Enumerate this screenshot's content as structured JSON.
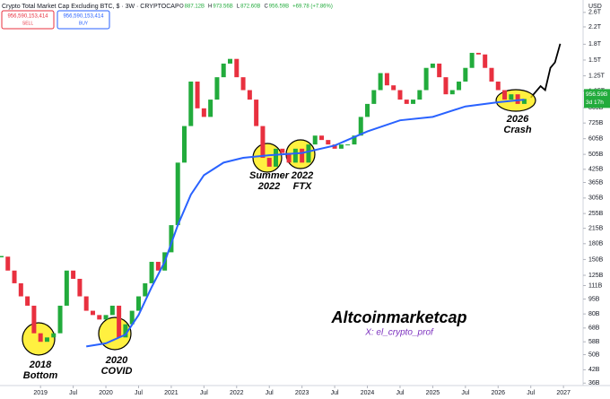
{
  "chart_data": {
    "type": "candlestick",
    "title": "Crypto Total Market Cap Excluding BTC, $ · 3W · CRYPTOCAP",
    "ohlc": [
      {
        "label": "O",
        "value": "887.12B"
      },
      {
        "label": "H",
        "value": "973.56B"
      },
      {
        "label": "L",
        "value": "872.60B"
      },
      {
        "label": "C",
        "value": "956.59B"
      },
      {
        "label": "",
        "value": "+69.78 (+7.86%)"
      }
    ],
    "trade_panel": {
      "sell_price": "956,590,153,414",
      "sell": "SELL",
      "buy_price": "956,590,153,414",
      "buy": "BUY"
    },
    "currency": "USD",
    "price_label": "956.59B",
    "countdown": "3d 17h",
    "log_scale": true,
    "grid": false,
    "up_color": "#22ab3c",
    "down_color": "#e8303f",
    "x": [
      2018.4,
      2018.5,
      2018.6,
      2018.7,
      2018.8,
      2018.9,
      2019.0,
      2019.1,
      2019.2,
      2019.3,
      2019.4,
      2019.5,
      2019.6,
      2019.7,
      2019.8,
      2019.9,
      2020.0,
      2020.1,
      2020.2,
      2020.3,
      2020.4,
      2020.5,
      2020.6,
      2020.7,
      2020.8,
      2020.9,
      2021.0,
      2021.1,
      2021.2,
      2021.3,
      2021.4,
      2021.5,
      2021.6,
      2021.7,
      2021.8,
      2021.9,
      2022.0,
      2022.1,
      2022.2,
      2022.3,
      2022.4,
      2022.5,
      2022.6,
      2022.7,
      2022.8,
      2022.9,
      2023.0,
      2023.1,
      2023.2,
      2023.3,
      2023.4,
      2023.5,
      2023.6,
      2023.7,
      2023.8,
      2023.9,
      2024.0,
      2024.1,
      2024.2,
      2024.3,
      2024.4,
      2024.5,
      2024.6,
      2024.7,
      2024.8,
      2024.9,
      2025.0,
      2025.1,
      2025.2,
      2025.3,
      2025.4,
      2025.5,
      2025.6,
      2025.7,
      2025.8,
      2025.9,
      2026.0,
      2026.1,
      2026.2,
      2026.3,
      2026.4
    ],
    "values": [
      155,
      132,
      114,
      98,
      88,
      64,
      58,
      61,
      64,
      88,
      132,
      120,
      98,
      83,
      79,
      75,
      79,
      88,
      61,
      71,
      83,
      98,
      114,
      146,
      132,
      163,
      223,
      459,
      700,
      1170,
      859,
      778,
      950,
      1230,
      1440,
      1520,
      1230,
      1060,
      950,
      700,
      485,
      438,
      539,
      513,
      459,
      539,
      459,
      566,
      627,
      596,
      566,
      539,
      566,
      566,
      627,
      778,
      904,
      1060,
      1290,
      1120,
      1060,
      950,
      904,
      950,
      1060,
      1370,
      1440,
      1230,
      1010,
      1060,
      1170,
      1370,
      1630,
      1600,
      1370,
      1170,
      1060,
      950,
      1010,
      904,
      957
    ],
    "ma": {
      "color": "#2962ff",
      "x": [
        2019.7,
        2020.0,
        2020.3,
        2020.5,
        2020.7,
        2020.9,
        2021.1,
        2021.3,
        2021.5,
        2021.8,
        2022.1,
        2022.5,
        2023.0,
        2023.5,
        2024.0,
        2024.5,
        2025.0,
        2025.5,
        2026.0,
        2026.4
      ],
      "values": [
        55,
        57,
        63,
        79,
        109,
        146,
        223,
        317,
        397,
        459,
        485,
        500,
        513,
        559,
        658,
        748,
        778,
        878,
        922,
        950
      ]
    },
    "projection": {
      "color": "#000000",
      "x": [
        2026.5,
        2026.65,
        2026.72,
        2026.8,
        2026.87,
        2026.95
      ],
      "values": [
        973,
        1110,
        1060,
        1370,
        1460,
        1810
      ]
    },
    "xlim": [
      2018.38,
      2027.3
    ],
    "ylim": [
      35,
      3000
    ],
    "xticks": [
      {
        "value": 2019,
        "label": "2019"
      },
      {
        "value": 2019.5,
        "label": "Jul"
      },
      {
        "value": 2020,
        "label": "2020"
      },
      {
        "value": 2020.5,
        "label": "Jul"
      },
      {
        "value": 2021,
        "label": "2021"
      },
      {
        "value": 2021.5,
        "label": "Jul"
      },
      {
        "value": 2022,
        "label": "2022"
      },
      {
        "value": 2022.5,
        "label": "Jul"
      },
      {
        "value": 2023,
        "label": "2023"
      },
      {
        "value": 2023.5,
        "label": "Jul"
      },
      {
        "value": 2024,
        "label": "2024"
      },
      {
        "value": 2024.5,
        "label": "Jul"
      },
      {
        "value": 2025,
        "label": "2025"
      },
      {
        "value": 2025.5,
        "label": "Jul"
      },
      {
        "value": 2026,
        "label": "2026"
      },
      {
        "value": 2026.5,
        "label": "Jul"
      },
      {
        "value": 2027,
        "label": "2027"
      }
    ],
    "yticks": [
      {
        "value": 2600,
        "label": "2.6T"
      },
      {
        "value": 2200,
        "label": "2.2T"
      },
      {
        "value": 1800,
        "label": "1.8T"
      },
      {
        "value": 1500,
        "label": "1.5T"
      },
      {
        "value": 1250,
        "label": "1.25T"
      },
      {
        "value": 1050,
        "label": "1.05T"
      },
      {
        "value": 865,
        "label": "865B"
      },
      {
        "value": 725,
        "label": "725B"
      },
      {
        "value": 605,
        "label": "605B"
      },
      {
        "value": 505,
        "label": "505B"
      },
      {
        "value": 425,
        "label": "425B"
      },
      {
        "value": 365,
        "label": "365B"
      },
      {
        "value": 305,
        "label": "305B"
      },
      {
        "value": 255,
        "label": "255B"
      },
      {
        "value": 215,
        "label": "215B"
      },
      {
        "value": 180,
        "label": "180B"
      },
      {
        "value": 150,
        "label": "150B"
      },
      {
        "value": 125,
        "label": "125B"
      },
      {
        "value": 111,
        "label": "111B"
      },
      {
        "value": 95,
        "label": "95B"
      },
      {
        "value": 80,
        "label": "80B"
      },
      {
        "value": 68,
        "label": "68B"
      },
      {
        "value": 58,
        "label": "58B"
      },
      {
        "value": 50,
        "label": "50B"
      },
      {
        "value": 42,
        "label": "42B"
      },
      {
        "value": 36,
        "label": "36B"
      }
    ],
    "annotations": [
      {
        "lines": [
          "2018",
          "Bottom"
        ]
      },
      {
        "lines": [
          "2020",
          "COVID"
        ]
      },
      {
        "lines": [
          "Summer",
          "2022"
        ]
      },
      {
        "lines": [
          "2022",
          "FTX"
        ]
      },
      {
        "lines": [
          "2026",
          "Crash"
        ]
      }
    ],
    "watermark": "Altcoinmarketcap",
    "handle": "X: el_crypto_prof"
  }
}
